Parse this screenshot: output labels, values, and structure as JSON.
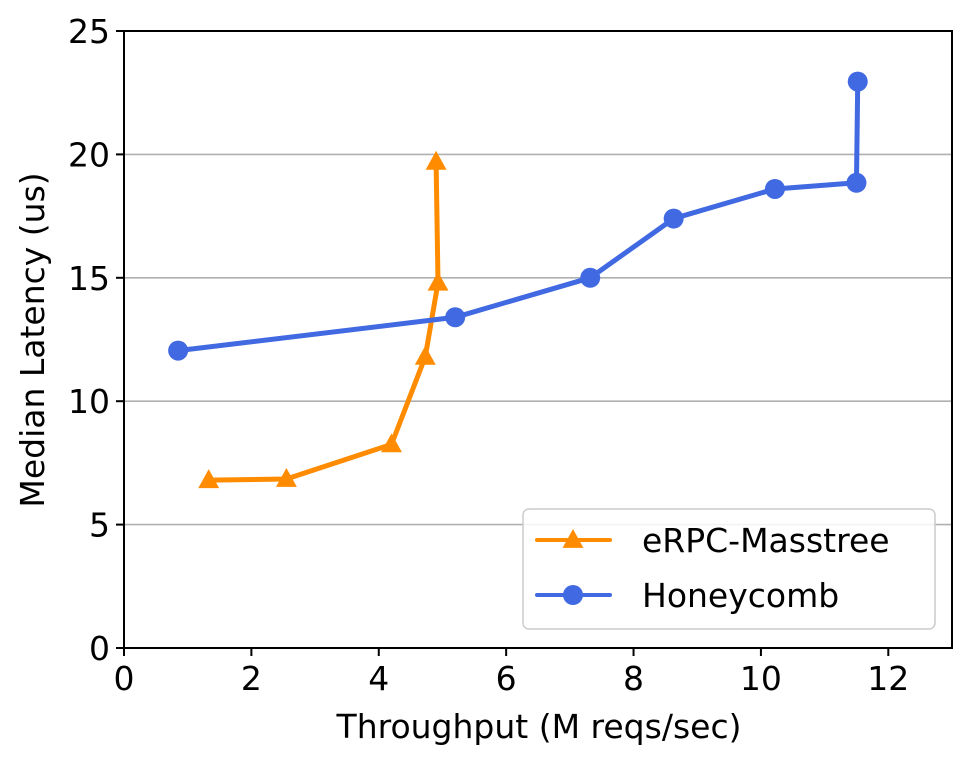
{
  "chart_data": {
    "type": "line",
    "title": "",
    "xlabel": "Throughput (M reqs/sec)",
    "ylabel": "Median Latency (us)",
    "xlim": [
      0,
      13
    ],
    "ylim": [
      0,
      25
    ],
    "xticks": [
      0,
      2,
      4,
      6,
      8,
      10,
      12
    ],
    "yticks": [
      0,
      5,
      10,
      15,
      20,
      25
    ],
    "grid": "horizontal",
    "legend_position": "bottom-right",
    "series": [
      {
        "name": "eRPC-Masstree",
        "color": "#ff8c00",
        "marker": "triangle",
        "x": [
          1.33,
          2.55,
          4.2,
          4.73,
          4.93,
          4.9
        ],
        "y": [
          6.8,
          6.85,
          8.25,
          11.8,
          14.8,
          19.7
        ]
      },
      {
        "name": "Honeycomb",
        "color": "#4169e1",
        "marker": "circle",
        "x": [
          0.85,
          5.2,
          7.32,
          8.63,
          10.22,
          11.5,
          11.52
        ],
        "y": [
          12.05,
          13.4,
          15.0,
          17.4,
          18.6,
          18.85,
          22.95
        ]
      }
    ]
  }
}
